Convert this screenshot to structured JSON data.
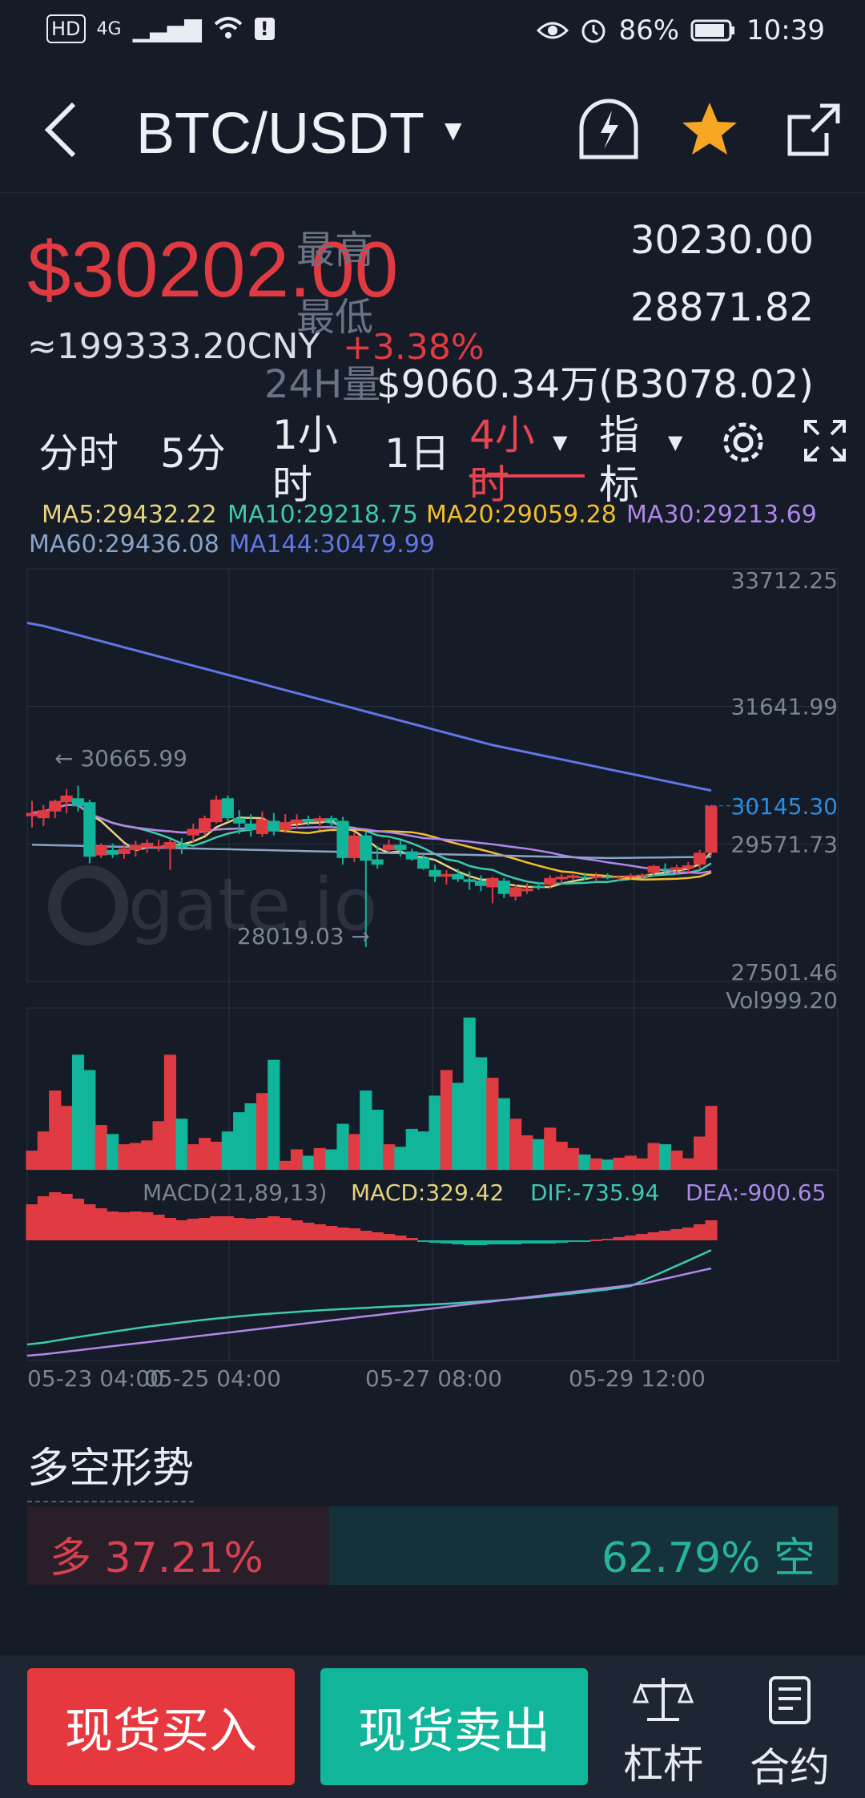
{
  "status_bar": {
    "left_items": [
      "HD",
      "4G",
      "▁▃▅▇",
      "Wi-Fi",
      "!"
    ],
    "battery": "86%",
    "time": "10:39"
  },
  "header": {
    "back_icon": "back-arrow",
    "pair": "BTC/USDT",
    "alarm_icon": "alert-bell",
    "favorite_icon": "star",
    "share_icon": "share"
  },
  "summary": {
    "price": "$30202.00",
    "cny": "≈199333.20CNY",
    "change": "+3.38%",
    "high_label": "最高",
    "high_value": "30230.00",
    "low_label": "最低",
    "low_value": "28871.82",
    "vol_label": "24H量",
    "vol_value": "$9060.34万(B3078.02)"
  },
  "tabs": {
    "items": [
      "分时",
      "5分",
      "1小时",
      "1日",
      "4小时",
      "指标"
    ],
    "active_index": 4,
    "settings_icon": "gear",
    "fullscreen_icon": "expand"
  },
  "ma_legend": [
    {
      "label": "MA5:29432.22",
      "color": "#e6d47c"
    },
    {
      "label": "MA10:29218.75",
      "color": "#3dcab0"
    },
    {
      "label": "MA20:29059.28",
      "color": "#f4be2b"
    },
    {
      "label": "MA30:29213.69",
      "color": "#b087e8"
    },
    {
      "label": "MA60:29436.08",
      "color": "#8aa4c8"
    },
    {
      "label": "MA144:30479.99",
      "color": "#6277e6"
    }
  ],
  "chart_data": {
    "type": "candlestick",
    "price_axis": [
      "33712.25",
      "31641.99",
      "29571.73",
      "27501.46"
    ],
    "ylim": [
      27501.46,
      33712.25
    ],
    "current_price_label": "30145.30",
    "high_annotation": "← 30665.99",
    "low_annotation": "28019.03 →",
    "volume_label": "Vol999.20",
    "macd_labels": [
      "MACD(21,89,13)",
      "MACD:329.42",
      "DIF:-735.94",
      "DEA:-900.65"
    ],
    "x_labels": [
      "05-23 04:00",
      "05-25 04:00",
      "05-27 08:00",
      "05-29 12:00"
    ],
    "watermark": "gate.io",
    "candles": [
      {
        "o": 29990,
        "h": 30220,
        "l": 29820,
        "c": 30040,
        "v": 150
      },
      {
        "o": 29960,
        "h": 30160,
        "l": 29840,
        "c": 30080,
        "v": 300
      },
      {
        "o": 30060,
        "h": 30240,
        "l": 29960,
        "c": 30220,
        "v": 620
      },
      {
        "o": 30200,
        "h": 30400,
        "l": 30030,
        "c": 30300,
        "v": 500
      },
      {
        "o": 30260,
        "h": 30450,
        "l": 30060,
        "c": 30140,
        "v": 900
      },
      {
        "o": 30200,
        "h": 30240,
        "l": 29280,
        "c": 29380,
        "v": 780
      },
      {
        "o": 29400,
        "h": 29580,
        "l": 29360,
        "c": 29540,
        "v": 350
      },
      {
        "o": 29480,
        "h": 29580,
        "l": 29360,
        "c": 29410,
        "v": 280
      },
      {
        "o": 29420,
        "h": 29560,
        "l": 29350,
        "c": 29500,
        "v": 200
      },
      {
        "o": 29480,
        "h": 29620,
        "l": 29380,
        "c": 29560,
        "v": 210
      },
      {
        "o": 29520,
        "h": 29640,
        "l": 29440,
        "c": 29590,
        "v": 230
      },
      {
        "o": 29540,
        "h": 29640,
        "l": 29460,
        "c": 29540,
        "v": 380
      },
      {
        "o": 29500,
        "h": 29640,
        "l": 29180,
        "c": 29600,
        "v": 900
      },
      {
        "o": 29560,
        "h": 29660,
        "l": 29420,
        "c": 29520,
        "v": 400
      },
      {
        "o": 29700,
        "h": 29880,
        "l": 29600,
        "c": 29800,
        "v": 200
      },
      {
        "o": 29760,
        "h": 30000,
        "l": 29700,
        "c": 29960,
        "v": 250
      },
      {
        "o": 29900,
        "h": 30300,
        "l": 29880,
        "c": 30240,
        "v": 220
      },
      {
        "o": 30260,
        "h": 30300,
        "l": 29900,
        "c": 29960,
        "v": 300
      },
      {
        "o": 29960,
        "h": 30080,
        "l": 29720,
        "c": 29880,
        "v": 450
      },
      {
        "o": 29880,
        "h": 30020,
        "l": 29680,
        "c": 29780,
        "v": 520
      },
      {
        "o": 29720,
        "h": 30060,
        "l": 29680,
        "c": 29940,
        "v": 600
      },
      {
        "o": 29920,
        "h": 30040,
        "l": 29700,
        "c": 29760,
        "v": 860
      },
      {
        "o": 29780,
        "h": 30020,
        "l": 29740,
        "c": 29900,
        "v": 70
      },
      {
        "o": 29880,
        "h": 30020,
        "l": 29800,
        "c": 29940,
        "v": 160
      },
      {
        "o": 29950,
        "h": 30000,
        "l": 29850,
        "c": 29900,
        "v": 110
      },
      {
        "o": 29920,
        "h": 30000,
        "l": 29780,
        "c": 29960,
        "v": 170
      },
      {
        "o": 29960,
        "h": 30000,
        "l": 29820,
        "c": 29920,
        "v": 160
      },
      {
        "o": 29920,
        "h": 29980,
        "l": 29260,
        "c": 29360,
        "v": 360
      },
      {
        "o": 29360,
        "h": 29750,
        "l": 29300,
        "c": 29700,
        "v": 280
      },
      {
        "o": 29700,
        "h": 29750,
        "l": 28020,
        "c": 29320,
        "v": 620
      },
      {
        "o": 29340,
        "h": 29540,
        "l": 29200,
        "c": 29260,
        "v": 470
      },
      {
        "o": 29480,
        "h": 29640,
        "l": 29440,
        "c": 29560,
        "v": 200
      },
      {
        "o": 29560,
        "h": 29620,
        "l": 29380,
        "c": 29480,
        "v": 180
      },
      {
        "o": 29460,
        "h": 29500,
        "l": 29320,
        "c": 29340,
        "v": 320
      },
      {
        "o": 29360,
        "h": 29420,
        "l": 29180,
        "c": 29200,
        "v": 300
      },
      {
        "o": 29180,
        "h": 29260,
        "l": 29000,
        "c": 29080,
        "v": 580
      },
      {
        "o": 29080,
        "h": 29180,
        "l": 28960,
        "c": 29120,
        "v": 780
      },
      {
        "o": 29120,
        "h": 29200,
        "l": 29000,
        "c": 29040,
        "v": 680
      },
      {
        "o": 29040,
        "h": 29160,
        "l": 28880,
        "c": 29000,
        "v": 1190
      },
      {
        "o": 29020,
        "h": 29100,
        "l": 28860,
        "c": 28940,
        "v": 880
      },
      {
        "o": 28920,
        "h": 29080,
        "l": 28680,
        "c": 29060,
        "v": 720
      },
      {
        "o": 29020,
        "h": 29060,
        "l": 28760,
        "c": 28820,
        "v": 560
      },
      {
        "o": 28780,
        "h": 28960,
        "l": 28720,
        "c": 28920,
        "v": 400
      },
      {
        "o": 28860,
        "h": 28980,
        "l": 28820,
        "c": 28900,
        "v": 270
      },
      {
        "o": 28940,
        "h": 29000,
        "l": 28880,
        "c": 28920,
        "v": 240
      },
      {
        "o": 28960,
        "h": 29100,
        "l": 28900,
        "c": 29060,
        "v": 330
      },
      {
        "o": 29040,
        "h": 29120,
        "l": 28980,
        "c": 29080,
        "v": 220
      },
      {
        "o": 29060,
        "h": 29120,
        "l": 29020,
        "c": 29100,
        "v": 170
      },
      {
        "o": 29080,
        "h": 29140,
        "l": 29030,
        "c": 29060,
        "v": 120
      },
      {
        "o": 29060,
        "h": 29140,
        "l": 29020,
        "c": 29090,
        "v": 90
      },
      {
        "o": 29080,
        "h": 29130,
        "l": 29040,
        "c": 29060,
        "v": 80
      },
      {
        "o": 29060,
        "h": 29100,
        "l": 29020,
        "c": 29080,
        "v": 95
      },
      {
        "o": 29080,
        "h": 29130,
        "l": 29040,
        "c": 29100,
        "v": 110
      },
      {
        "o": 29090,
        "h": 29130,
        "l": 29050,
        "c": 29110,
        "v": 90
      },
      {
        "o": 29140,
        "h": 29260,
        "l": 29090,
        "c": 29240,
        "v": 210
      },
      {
        "o": 29200,
        "h": 29280,
        "l": 29120,
        "c": 29180,
        "v": 200
      },
      {
        "o": 29180,
        "h": 29260,
        "l": 29120,
        "c": 29220,
        "v": 150
      },
      {
        "o": 29200,
        "h": 29300,
        "l": 29140,
        "c": 29250,
        "v": 90
      },
      {
        "o": 29260,
        "h": 29480,
        "l": 29200,
        "c": 29440,
        "v": 260
      },
      {
        "o": 29440,
        "h": 30160,
        "l": 29400,
        "c": 30140,
        "v": 500
      }
    ],
    "macd": [
      0.45,
      0.55,
      0.6,
      0.58,
      0.52,
      0.45,
      0.4,
      0.36,
      0.35,
      0.36,
      0.35,
      0.32,
      0.28,
      0.25,
      0.27,
      0.28,
      0.3,
      0.3,
      0.28,
      0.27,
      0.28,
      0.3,
      0.28,
      0.25,
      0.22,
      0.2,
      0.18,
      0.16,
      0.15,
      0.12,
      0.1,
      0.08,
      0.06,
      0.03,
      -0.01,
      -0.03,
      -0.04,
      -0.05,
      -0.06,
      -0.06,
      -0.05,
      -0.05,
      -0.05,
      -0.04,
      -0.04,
      -0.04,
      -0.03,
      -0.02,
      -0.01,
      0.01,
      0.02,
      0.04,
      0.06,
      0.08,
      0.1,
      0.12,
      0.14,
      0.16,
      0.2,
      0.25
    ]
  },
  "section": {
    "title": "多空形势",
    "long_label": "多",
    "long_value": "37.21%",
    "short_value": "62.79%",
    "short_label": "空",
    "long_ratio": 0.3721
  },
  "bottom_bar": {
    "buy": "现货买入",
    "sell": "现货卖出",
    "leverage": "杠杆",
    "contract": "合约"
  }
}
